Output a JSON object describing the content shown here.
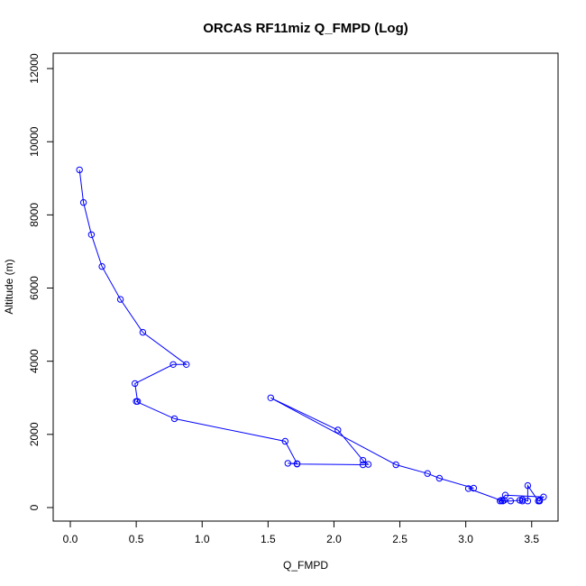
{
  "chart_data": {
    "type": "line",
    "title": "ORCAS RF11miz Q_FMPD (Log)",
    "xlabel": "Q_FMPD",
    "ylabel": "Altitude (m)",
    "xlim": [
      -0.13,
      3.7
    ],
    "ylim": [
      -370,
      12420
    ],
    "xticks": [
      0.0,
      0.5,
      1.0,
      1.5,
      2.0,
      2.5,
      3.0,
      3.5
    ],
    "xtick_labels": [
      "0.0",
      "0.5",
      "1.0",
      "1.5",
      "2.0",
      "2.5",
      "3.0",
      "3.5"
    ],
    "yticks": [
      0,
      2000,
      4000,
      6000,
      8000,
      10000,
      12000
    ],
    "ytick_labels": [
      "0",
      "2000",
      "4000",
      "6000",
      "8000",
      "10000",
      "12000"
    ],
    "grid": false,
    "legend": "none",
    "marker": "open-circle",
    "series": [
      {
        "color": "#0000ff",
        "points": [
          [
            0.07,
            9230
          ],
          [
            0.1,
            8340
          ],
          [
            0.16,
            7460
          ],
          [
            0.24,
            6590
          ],
          [
            0.38,
            5690
          ],
          [
            0.55,
            4790
          ],
          [
            0.88,
            3910
          ],
          [
            0.78,
            3910
          ],
          [
            0.49,
            3390
          ],
          [
            0.51,
            2900
          ],
          [
            0.5,
            2900
          ],
          [
            0.79,
            2430
          ],
          [
            1.63,
            1810
          ],
          [
            1.72,
            1200
          ],
          [
            1.65,
            1210
          ],
          [
            1.72,
            1190
          ],
          [
            2.22,
            1170
          ],
          [
            2.26,
            1180
          ],
          [
            2.22,
            1290
          ],
          [
            2.03,
            2120
          ],
          [
            1.52,
            3000
          ],
          [
            2.47,
            1170
          ],
          [
            2.71,
            930
          ],
          [
            2.8,
            800
          ],
          [
            3.06,
            530
          ],
          [
            3.02,
            520
          ],
          [
            3.28,
            180
          ],
          [
            3.34,
            180
          ],
          [
            3.41,
            200
          ],
          [
            3.43,
            180
          ],
          [
            3.43,
            220
          ],
          [
            3.47,
            180
          ],
          [
            3.47,
            600
          ],
          [
            3.55,
            180
          ],
          [
            3.56,
            200
          ],
          [
            3.56,
            180
          ],
          [
            3.59,
            290
          ],
          [
            3.3,
            340
          ],
          [
            3.26,
            180
          ],
          [
            3.27,
            200
          ],
          [
            3.29,
            200
          ]
        ]
      }
    ]
  }
}
